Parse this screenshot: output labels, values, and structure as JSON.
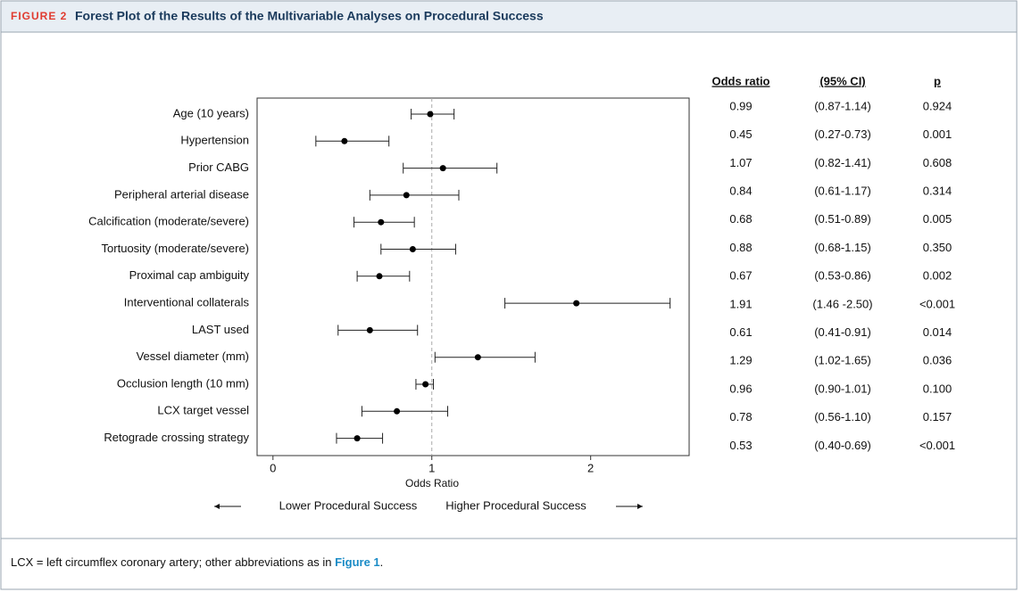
{
  "chart_data": {
    "type": "forest",
    "figure_label": "FIGURE 2",
    "title": "Forest Plot of the Results of the Multivariable Analyses on Procedural Success",
    "xlabel": "Odds Ratio",
    "direction_labels": [
      "Lower Procedural Success",
      "Higher Procedural Success"
    ],
    "columns": [
      "Odds ratio",
      "(95% CI)",
      "p"
    ],
    "categories": [
      "Age (10 years)",
      "Hypertension",
      "Prior CABG",
      "Peripheral arterial disease",
      "Calcification (moderate/severe)",
      "Tortuosity (moderate/severe)",
      "Proximal cap ambiguity",
      "Interventional collaterals",
      "LAST used",
      "Vessel diameter (mm)",
      "Occlusion length (10 mm)",
      "LCX target vessel",
      "Retograde crossing strategy"
    ],
    "values": [
      0.99,
      0.45,
      1.07,
      0.84,
      0.68,
      0.88,
      0.67,
      1.91,
      0.61,
      1.29,
      0.96,
      0.78,
      0.53
    ],
    "ci_lower": [
      0.87,
      0.27,
      0.82,
      0.61,
      0.51,
      0.68,
      0.53,
      1.46,
      0.41,
      1.02,
      0.9,
      0.56,
      0.4
    ],
    "ci_upper": [
      1.14,
      0.73,
      1.41,
      1.17,
      0.89,
      1.15,
      0.86,
      2.5,
      0.91,
      1.65,
      1.01,
      1.1,
      0.69
    ],
    "ci_labels": [
      "(0.87-1.14)",
      "(0.27-0.73)",
      "(0.82-1.41)",
      "(0.61-1.17)",
      "(0.51-0.89)",
      "(0.68-1.15)",
      "(0.53-0.86)",
      "(1.46 -2.50)",
      "(0.41-0.91)",
      "(1.02-1.65)",
      "(0.90-1.01)",
      "(0.56-1.10)",
      "(0.40-0.69)"
    ],
    "p_values": [
      "0.924",
      "0.001",
      "0.608",
      "0.314",
      "0.005",
      "0.350",
      "0.002",
      "<0.001",
      "0.014",
      "0.036",
      "0.100",
      "0.157",
      "<0.001"
    ],
    "xlim": [
      -0.1,
      2.62
    ],
    "xticks": [
      0,
      1,
      2
    ],
    "reference_line": 1,
    "footnote": [
      "LCX = left circumflex coronary artery; other abbreviations as in ",
      "Figure 1",
      "."
    ]
  }
}
